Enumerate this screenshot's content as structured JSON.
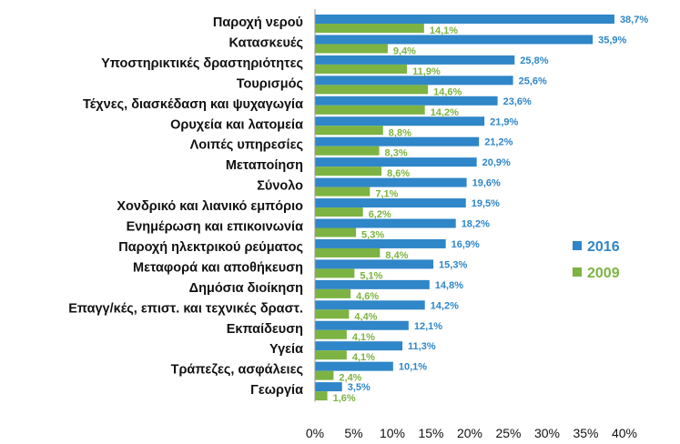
{
  "chart_data": {
    "type": "bar",
    "orientation": "horizontal",
    "categories": [
      "Παροχή νερού",
      "Κατασκευές",
      "Υποστηρικτικές δραστηριότητες",
      "Τουρισμός",
      "Τέχνες, διασκέδαση και ψυχαγωγία",
      "Ορυχεία και λατομεία",
      "Λοιπές υπηρεσίες",
      "Μεταποίηση",
      "Σύνολο",
      "Χονδρικό και λιανικό εμπόριο",
      "Ενημέρωση και επικοινωνία",
      "Παροχή ηλεκτρικού ρεύματος",
      "Μεταφορά και αποθήκευση",
      "Δημόσια διοίκηση",
      "Επαγγ/κές, επιστ. και τεχνικές δραστ.",
      "Εκπαίδευση",
      "Υγεία",
      "Τράπεζες, ασφάλειες",
      "Γεωργία"
    ],
    "series": [
      {
        "name": "2016",
        "color": "#2f86c8",
        "values": [
          38.7,
          35.9,
          25.8,
          25.6,
          23.6,
          21.9,
          21.2,
          20.9,
          19.6,
          19.5,
          18.2,
          16.9,
          15.3,
          14.8,
          14.2,
          12.1,
          11.3,
          10.1,
          3.5
        ],
        "labels": [
          "38,7%",
          "35,9%",
          "25,8%",
          "25,6%",
          "23,6%",
          "21,9%",
          "21,2%",
          "20,9%",
          "19,6%",
          "19,5%",
          "18,2%",
          "16,9%",
          "15,3%",
          "14,8%",
          "14,2%",
          "12,1%",
          "11,3%",
          "10,1%",
          "3,5%"
        ]
      },
      {
        "name": "2009",
        "color": "#7cb342",
        "values": [
          14.1,
          9.4,
          11.9,
          14.6,
          14.2,
          8.8,
          8.3,
          8.6,
          7.1,
          6.2,
          5.3,
          8.4,
          5.1,
          4.6,
          4.4,
          4.1,
          4.1,
          2.4,
          1.6
        ],
        "labels": [
          "14,1%",
          "9,4%",
          "11,9%",
          "14,6%",
          "14,2%",
          "8,8%",
          "8,3%",
          "8,6%",
          "7,1%",
          "6,2%",
          "5,3%",
          "8,4%",
          "5,1%",
          "4,6%",
          "4,4%",
          "4,1%",
          "4,1%",
          "2,4%",
          "1,6%"
        ]
      }
    ],
    "xlim": [
      0,
      40
    ],
    "xticks": [
      0,
      5,
      10,
      15,
      20,
      25,
      30,
      35,
      40
    ],
    "xtick_labels": [
      "0%",
      "5%",
      "10%",
      "15%",
      "20%",
      "25%",
      "30%",
      "35%",
      "40%"
    ],
    "grid": false,
    "legend_position": "right"
  }
}
